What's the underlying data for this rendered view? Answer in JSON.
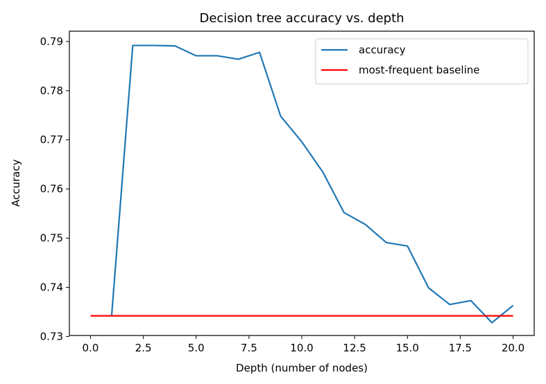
{
  "chart_data": {
    "type": "line",
    "title": "Decision tree accuracy vs. depth",
    "xlabel": "Depth (number of nodes)",
    "ylabel": "Accuracy",
    "xlim": [
      -1.0,
      21.0
    ],
    "ylim": [
      0.7302,
      0.7921
    ],
    "xticks": [
      0.0,
      2.5,
      5.0,
      7.5,
      10.0,
      12.5,
      15.0,
      17.5,
      20.0
    ],
    "xtick_labels": [
      "0.0",
      "2.5",
      "5.0",
      "7.5",
      "10.0",
      "12.5",
      "15.0",
      "17.5",
      "20.0"
    ],
    "yticks": [
      0.73,
      0.74,
      0.75,
      0.76,
      0.77,
      0.78,
      0.79
    ],
    "ytick_labels": [
      "0.73",
      "0.74",
      "0.75",
      "0.76",
      "0.77",
      "0.78",
      "0.79"
    ],
    "grid": false,
    "legend_position": "top-right",
    "series": [
      {
        "name": "accuracy",
        "color": "#1f77b4",
        "x": [
          1,
          2,
          3,
          4,
          5,
          6,
          7,
          8,
          9,
          10,
          11,
          12,
          13,
          14,
          15,
          16,
          17,
          18,
          19,
          20
        ],
        "y": [
          0.7342,
          0.7892,
          0.7892,
          0.7891,
          0.7871,
          0.7871,
          0.7864,
          0.7878,
          0.7748,
          0.7696,
          0.7634,
          0.7552,
          0.7528,
          0.7491,
          0.7484,
          0.7399,
          0.7365,
          0.7373,
          0.7328,
          0.7363
        ]
      },
      {
        "name": "most-frequent baseline",
        "color": "#ff0000",
        "x": [
          0,
          20
        ],
        "y": [
          0.7342,
          0.7342
        ]
      }
    ]
  }
}
